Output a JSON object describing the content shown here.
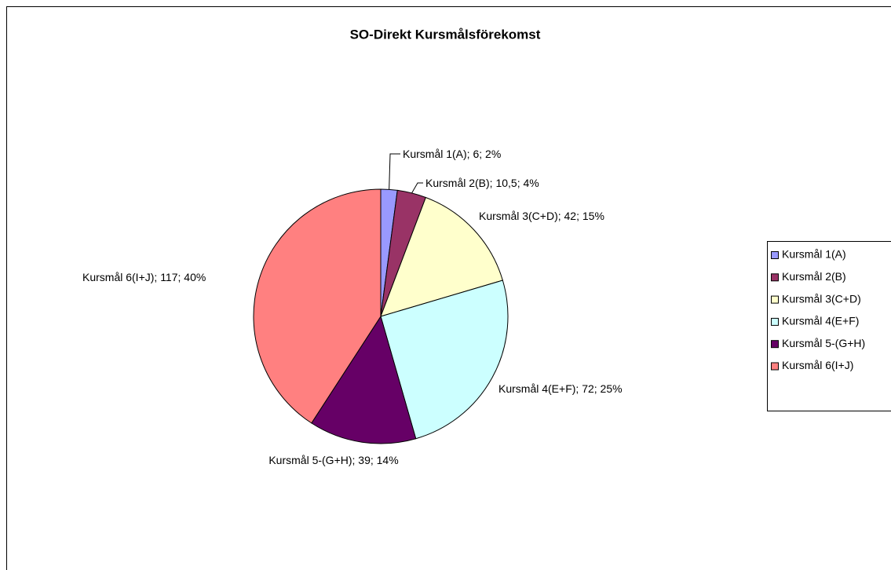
{
  "chart_data": {
    "type": "pie",
    "title": "SO-Direkt Kursmålsförekomst",
    "categories": [
      "Kursmål 1(A)",
      "Kursmål 2(B)",
      "Kursmål 3(C+D)",
      "Kursmål 4(E+F)",
      "Kursmål 5-(G+H)",
      "Kursmål 6(I+J)"
    ],
    "values": [
      6,
      10.5,
      42,
      72,
      39,
      117
    ],
    "value_labels": [
      "Kursmål 1(A); 6; 2%",
      "Kursmål 2(B); 10,5; 4%",
      "Kursmål 3(C+D); 42; 15%",
      "Kursmål 4(E+F); 72; 25%",
      "Kursmål 5-(G+H); 39; 14%",
      "Kursmål 6(I+J); 117; 40%"
    ],
    "colors": [
      "#9999ff",
      "#993366",
      "#ffffcc",
      "#ccffff",
      "#660066",
      "#ff8080"
    ],
    "legend": "right"
  }
}
